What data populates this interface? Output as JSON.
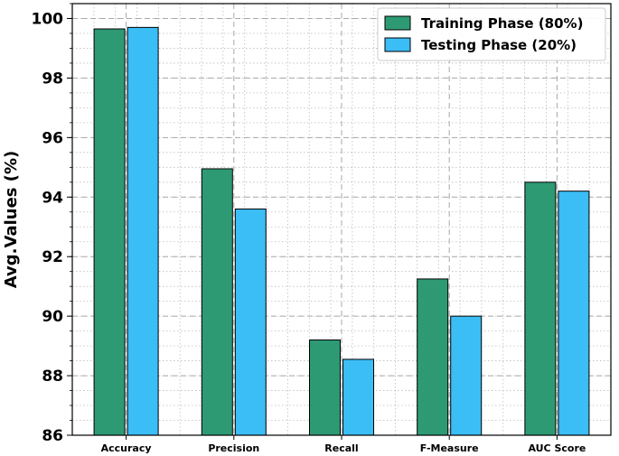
{
  "chart_data": {
    "type": "bar",
    "title": "",
    "xlabel": "",
    "ylabel": "Avg.Values (%)",
    "ylim": [
      86,
      100.5
    ],
    "yticks": [
      86,
      88,
      90,
      92,
      94,
      96,
      98,
      100
    ],
    "categories": [
      "Accuracy",
      "Precision",
      "Recall",
      "F-Measure",
      "AUC Score"
    ],
    "series": [
      {
        "name": "Training Phase (80%)",
        "color": "#2e9a73",
        "values": [
          99.65,
          94.95,
          89.2,
          91.25,
          94.5
        ]
      },
      {
        "name": "Testing Phase (20%)",
        "color": "#3bbdf5",
        "values": [
          99.7,
          93.6,
          88.55,
          90.0,
          94.2
        ]
      }
    ],
    "grid": true,
    "legend_position": "top-right"
  }
}
